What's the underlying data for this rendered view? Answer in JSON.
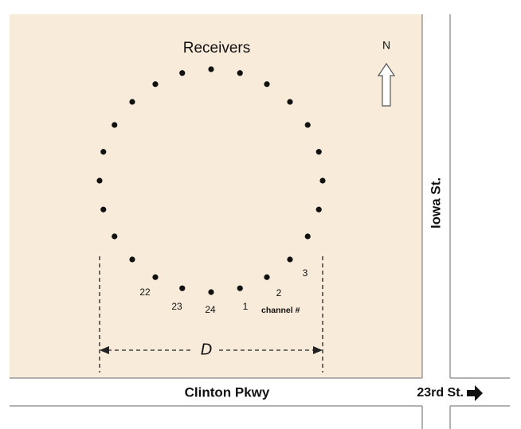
{
  "title": "Receivers",
  "compass": {
    "label": "N"
  },
  "streets": {
    "vertical": "Iowa St.",
    "horizontal": "Clinton Pkwy",
    "side": "23rd St."
  },
  "dimension": {
    "label": "D"
  },
  "channels": {
    "labels": [
      "22",
      "23",
      "24",
      "1",
      "2",
      "3"
    ],
    "caption": "channel #"
  }
}
